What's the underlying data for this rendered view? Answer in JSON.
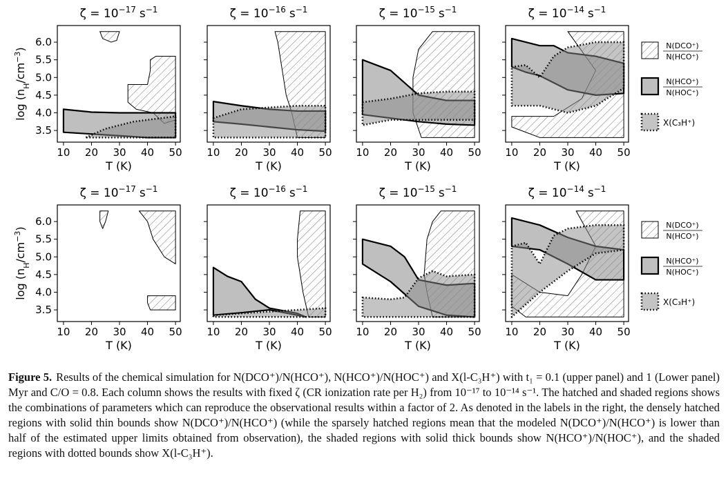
{
  "figure": {
    "axes": {
      "xlim": [
        7.8,
        51.7
      ],
      "ylim": [
        3.17,
        6.47
      ],
      "xticks": [
        10,
        20,
        30,
        40,
        50
      ],
      "yticks": [
        3.5,
        {
          "value": 4,
          "label": "4.0"
        },
        4.5,
        {
          "value": 5,
          "label": "5.0"
        },
        5.5,
        {
          "value": 6,
          "label": "6.0"
        }
      ],
      "xlabel": "T (K)",
      "ylabel": [
        "log (n",
        "H",
        "/cm",
        "−3",
        ")"
      ]
    },
    "legend": [
      {
        "num": "N(DCO⁺)",
        "den": "N(HCO⁺)"
      },
      {
        "num": "N(HCO⁺)",
        "den": "N(HOC⁺)"
      },
      {
        "label": "X(C₃H⁺)"
      }
    ],
    "panels": [
      {
        "title": {
          "base": "ζ = 10",
          "exp": "−17",
          "unit": "s",
          "unit_exp": "−1"
        },
        "series": [
          {
            "pieces": [
              {
                "x": [
                  23,
                  30,
                  29,
                  27,
                  24
                ],
                "y": [
                  6.3,
                  6.3,
                  6.05,
                  6.0,
                  6.1
                ]
              },
              {
                "x": [
                  41,
                  43,
                  50,
                  50,
                  46,
                  42,
                  36,
                  33,
                  33,
                  40,
                  41
                ],
                "y": [
                  5.5,
                  5.6,
                  5.6,
                  3.8,
                  3.7,
                  4.0,
                  4.1,
                  4.3,
                  4.8,
                  4.8,
                  5.2
                ]
              }
            ]
          },
          {
            "pieces": [
              {
                "x": [
                  10,
                  20,
                  30,
                  40,
                  50,
                  50,
                  40,
                  30,
                  20,
                  10
                ],
                "y": [
                  4.1,
                  4.02,
                  4.0,
                  4.0,
                  4.0,
                  3.3,
                  3.3,
                  3.35,
                  3.4,
                  3.45
                ]
              }
            ]
          },
          {
            "pieces": [
              {
                "x": [
                  18,
                  25,
                  35,
                  45,
                  50,
                  50
                ],
                "y": [
                  3.3,
                  3.55,
                  3.75,
                  3.85,
                  3.9,
                  3.3
                ]
              }
            ]
          }
        ]
      },
      {
        "title": {
          "base": "ζ = 10",
          "exp": "−16",
          "unit": "s",
          "unit_exp": "−1"
        },
        "series": [
          {
            "pieces": [
              {
                "x": [
                  32,
                  50,
                  50,
                  40,
                  38,
                  36,
                  35,
                  34,
                  33
                ],
                "y": [
                  6.3,
                  6.3,
                  3.3,
                  3.3,
                  4.0,
                  4.5,
                  5.0,
                  5.5,
                  6.0
                ]
              }
            ]
          },
          {
            "pieces": [
              {
                "x": [
                  10,
                  20,
                  30,
                  40,
                  50,
                  50,
                  40,
                  30,
                  20,
                  10
                ],
                "y": [
                  4.32,
                  4.2,
                  4.1,
                  4.05,
                  4.05,
                  3.48,
                  3.52,
                  3.6,
                  3.68,
                  3.75
                ]
              }
            ]
          },
          {
            "pieces": [
              {
                "x": [
                  10,
                  20,
                  30,
                  40,
                  50,
                  50,
                  10
                ],
                "y": [
                  3.85,
                  4.1,
                  4.15,
                  4.2,
                  4.2,
                  3.3,
                  3.3
                ]
              }
            ]
          }
        ]
      },
      {
        "title": {
          "base": "ζ = 10",
          "exp": "−15",
          "unit": "s",
          "unit_exp": "−1"
        },
        "series": [
          {
            "pieces": [
              {
                "x": [
                  35,
                  50,
                  50,
                  31,
                  28,
                  28,
                  30
                ],
                "y": [
                  6.3,
                  6.3,
                  3.3,
                  3.3,
                  4.0,
                  5.0,
                  5.8
                ]
              }
            ]
          },
          {
            "pieces": [
              {
                "x": [
                  10,
                  20,
                  30,
                  40,
                  50,
                  50,
                  40,
                  30,
                  20,
                  10
                ],
                "y": [
                  5.5,
                  5.2,
                  4.5,
                  4.35,
                  4.35,
                  3.65,
                  3.68,
                  3.75,
                  3.85,
                  3.95
                ]
              }
            ]
          },
          {
            "pieces": [
              {
                "x": [
                  10,
                  20,
                  30,
                  40,
                  50,
                  50,
                  40,
                  30,
                  20,
                  10
                ],
                "y": [
                  4.3,
                  4.4,
                  4.55,
                  4.6,
                  4.6,
                  3.8,
                  3.8,
                  3.8,
                  3.8,
                  3.65
                ]
              }
            ]
          }
        ]
      },
      {
        "title": {
          "base": "ζ = 10",
          "exp": "−14",
          "unit": "s",
          "unit_exp": "−1"
        },
        "series": [
          {
            "pieces": [
              {
                "x": [
                  30,
                  50,
                  50,
                  20,
                  10,
                  10,
                  25,
                  35,
                  40
                ],
                "y": [
                  6.3,
                  6.3,
                  3.3,
                  3.3,
                  3.6,
                  3.9,
                  3.9,
                  4.4,
                  5.2
                ]
              }
            ]
          },
          {
            "pieces": [
              {
                "x": [
                  10,
                  15,
                  20,
                  25,
                  30,
                  40,
                  50,
                  50,
                  40,
                  30,
                  20,
                  15,
                  10
                ],
                "y": [
                  6.1,
                  6.0,
                  5.9,
                  5.9,
                  5.7,
                  5.6,
                  5.4,
                  4.55,
                  4.5,
                  4.65,
                  5.05,
                  5.15,
                  5.3
                ]
              }
            ]
          },
          {
            "pieces": [
              {
                "x": [
                  10,
                  15,
                  20,
                  25,
                  30,
                  40,
                  50,
                  50,
                  40,
                  30,
                  20,
                  10
                ],
                "y": [
                  5.3,
                  5.35,
                  5.0,
                  5.6,
                  5.85,
                  6.0,
                  6.0,
                  4.7,
                  4.2,
                  4.0,
                  4.2,
                  4.2
                ]
              }
            ]
          }
        ]
      },
      {
        "title": {
          "base": "ζ = 10",
          "exp": "−17",
          "unit": "s",
          "unit_exp": "−1"
        },
        "series": [
          {
            "pieces": [
              {
                "x": [
                  23,
                  26,
                  25,
                  24,
                  23
                ],
                "y": [
                  6.3,
                  6.3,
                  6.0,
                  5.8,
                  6.0
                ]
              },
              {
                "x": [
                  37,
                  50,
                  50,
                  46,
                  42,
                  40
                ],
                "y": [
                  6.3,
                  6.3,
                  4.8,
                  5.0,
                  5.5,
                  6.0
                ]
              },
              {
                "x": [
                  40,
                  50,
                  50,
                  41,
                  40
                ],
                "y": [
                  3.9,
                  3.9,
                  3.5,
                  3.5,
                  3.7
                ]
              }
            ]
          },
          {
            "pieces": []
          },
          {
            "pieces": []
          }
        ]
      },
      {
        "title": {
          "base": "ζ = 10",
          "exp": "−16",
          "unit": "s",
          "unit_exp": "−1"
        },
        "series": [
          {
            "pieces": [
              {
                "x": [
                  41,
                  50,
                  50,
                  44,
                  42,
                  41,
                  40,
                  40
                ],
                "y": [
                  6.3,
                  6.3,
                  3.3,
                  3.3,
                  4.0,
                  4.5,
                  5.0,
                  5.5
                ]
              }
            ]
          },
          {
            "pieces": [
              {
                "x": [
                  10,
                  15,
                  20,
                  25,
                  30,
                  40,
                  43,
                  40,
                  30,
                  20,
                  10
                ],
                "y": [
                  4.7,
                  4.45,
                  4.3,
                  3.8,
                  3.55,
                  3.4,
                  3.3,
                  3.35,
                  3.5,
                  3.42,
                  3.35
                ]
              }
            ]
          },
          {
            "pieces": [
              {
                "x": [
                  10,
                  20,
                  30,
                  40,
                  50,
                  50,
                  10
                ],
                "y": [
                  3.35,
                  3.4,
                  3.45,
                  3.5,
                  3.55,
                  3.3,
                  3.3
                ]
              }
            ]
          }
        ]
      },
      {
        "title": {
          "base": "ζ = 10",
          "exp": "−15",
          "unit": "s",
          "unit_exp": "−1"
        },
        "series": [
          {
            "pieces": [
              {
                "x": [
                  38,
                  50,
                  50,
                  35,
                  33,
                  32,
                  33,
                  35
                ],
                "y": [
                  6.3,
                  6.3,
                  3.3,
                  3.3,
                  4.0,
                  4.5,
                  5.5,
                  6.0
                ]
              }
            ]
          },
          {
            "pieces": [
              {
                "x": [
                  10,
                  20,
                  25,
                  30,
                  40,
                  50,
                  50,
                  40,
                  30,
                  20,
                  10
                ],
                "y": [
                  5.5,
                  5.3,
                  5.0,
                  4.35,
                  4.2,
                  4.25,
                  3.3,
                  3.35,
                  3.6,
                  4.3,
                  4.8
                ]
              }
            ]
          },
          {
            "pieces": [
              {
                "x": [
                  10,
                  20,
                  25,
                  30,
                  35,
                  40,
                  50,
                  50,
                  10
                ],
                "y": [
                  3.85,
                  3.8,
                  3.85,
                  4.4,
                  4.6,
                  4.45,
                  4.5,
                  3.3,
                  3.3
                ]
              }
            ]
          }
        ]
      },
      {
        "title": {
          "base": "ζ = 10",
          "exp": "−14",
          "unit": "s",
          "unit_exp": "−1"
        },
        "series": [
          {
            "pieces": [
              {
                "x": [
                  33,
                  50,
                  50,
                  15,
                  10,
                  10,
                  20,
                  30,
                  35,
                  40
                ],
                "y": [
                  6.3,
                  6.3,
                  3.3,
                  3.3,
                  3.6,
                  4.5,
                  4.0,
                  3.9,
                  4.5,
                  5.3
                ]
              }
            ]
          },
          {
            "pieces": [
              {
                "x": [
                  10,
                  20,
                  30,
                  40,
                  50,
                  50,
                  40,
                  30,
                  20,
                  10
                ],
                "y": [
                  6.1,
                  5.9,
                  5.55,
                  5.3,
                  5.2,
                  4.35,
                  4.35,
                  4.8,
                  5.2,
                  5.3
                ]
              }
            ]
          },
          {
            "pieces": [
              {
                "x": [
                  10,
                  15,
                  20,
                  25,
                  30,
                  40,
                  50,
                  50,
                  40,
                  30,
                  20,
                  10
                ],
                "y": [
                  5.3,
                  5.4,
                  4.8,
                  5.6,
                  5.8,
                  5.9,
                  5.9,
                  5.2,
                  5.1,
                  4.6,
                  4.0,
                  3.3
                ]
              }
            ]
          }
        ]
      }
    ]
  },
  "caption": {
    "label": "Figure 5.",
    "text": "Results of the chemical simulation for N(DCO⁺)/N(HCO⁺), N(HCO⁺)/N(HOC⁺) and X(l-C₃H⁺) with t₁ = 0.1 (upper panel) and 1 (Lower panel) Myr and C/O = 0.8. Each column shows the results with fixed ζ (CR ionization rate per H₂) from 10⁻¹⁷ to 10⁻¹⁴ s⁻¹. The hatched and shaded regions shows the combinations of parameters which can reproduce the observational results within a factor of 2. As denoted in the labels in the right, the densely hatched regions with solid thin bounds show N(DCO⁺)/N(HCO⁺) (while the sparsely hatched regions mean that the modeled N(DCO⁺)/N(HCO⁺) is lower than half of the estimated upper limits obtained from observation), the shaded regions with solid thick bounds show N(HCO⁺)/N(HOC⁺), and the shaded regions with dotted bounds show X(l-C₃H⁺)."
  }
}
